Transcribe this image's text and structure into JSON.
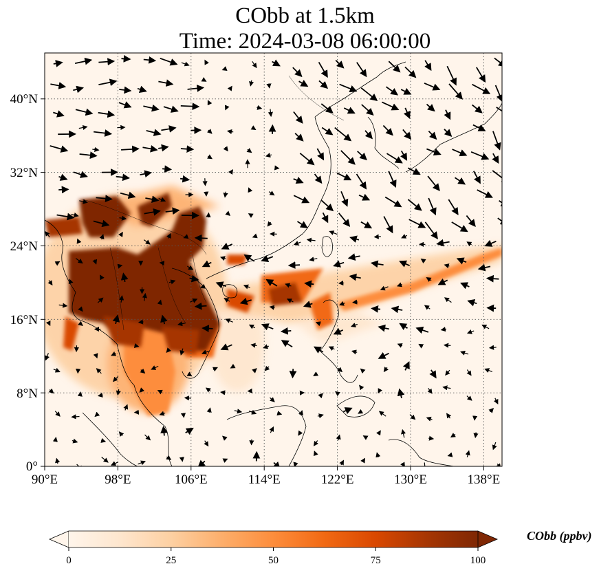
{
  "figure": {
    "title_line1": "CObb at 1.5km",
    "title_line2": "Time: 2024-03-08 06:00:00"
  },
  "map": {
    "x_axis_ticks": [
      "90°E",
      "98°E",
      "106°E",
      "114°E",
      "122°E",
      "130°E",
      "138°E"
    ],
    "y_axis_ticks": [
      "40°N",
      "32°N",
      "24°N",
      "16°N",
      "8°N",
      "0°"
    ],
    "lon_range": [
      90,
      140
    ],
    "lat_range": [
      0,
      45
    ],
    "gridlines": "dotted",
    "field": "CObb concentration",
    "vectors": "wind arrows"
  },
  "colorbar": {
    "label": "CObb (ppbv)",
    "ticks": [
      "0",
      "25",
      "50",
      "75",
      "100"
    ],
    "range": [
      0,
      100
    ],
    "colormap": [
      "#fff5eb",
      "#fee6ce",
      "#fdd0a2",
      "#fdae6b",
      "#fd8d3c",
      "#f16913",
      "#d94801",
      "#a63603",
      "#7f2704"
    ],
    "extend": "both"
  }
}
